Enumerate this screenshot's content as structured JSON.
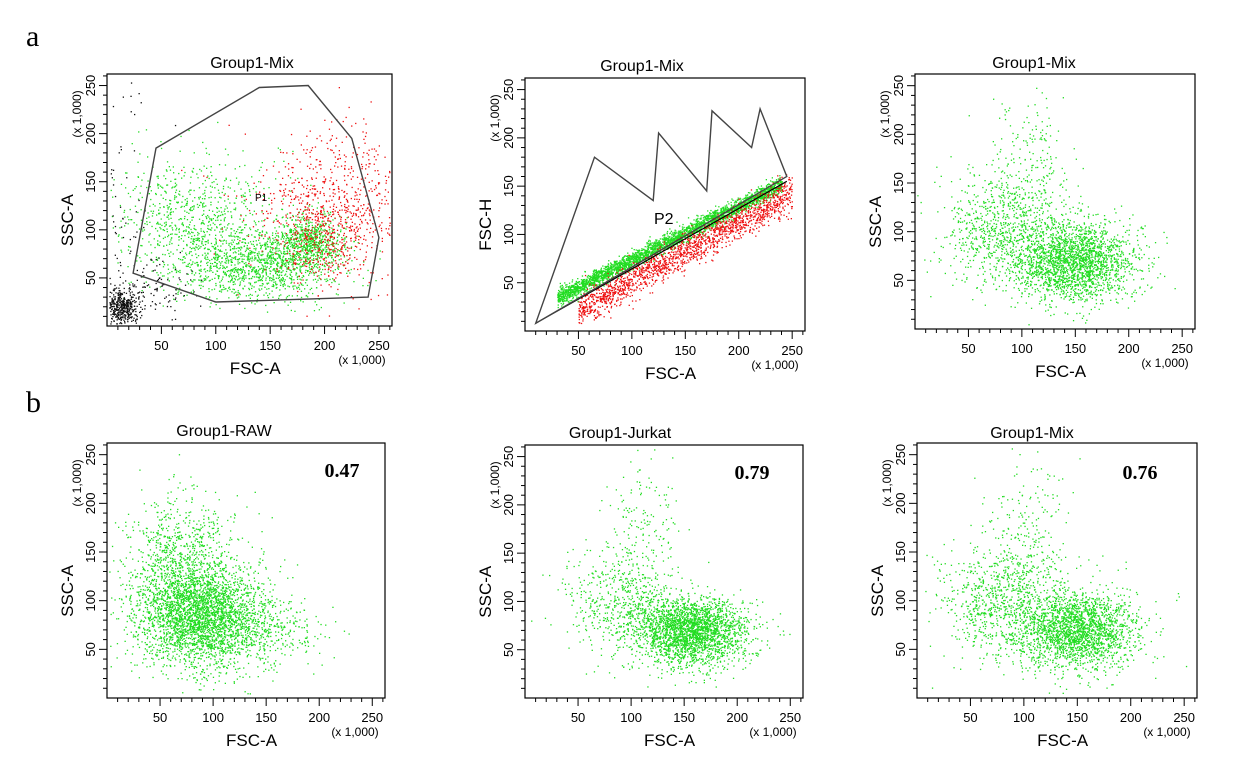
{
  "figure": {
    "panel_a_label": "a",
    "panel_b_label": "b"
  },
  "colors": {
    "green_population": "#22dd22",
    "red_population": "#ee1111",
    "debris": "#111111",
    "gate_line": "#444444"
  },
  "chart_data": [
    {
      "id": "a1",
      "type": "scatter",
      "title": "Group1-Mix",
      "xlabel": "FSC-A",
      "ylabel": "SSC-A",
      "x_scale": "(x 1,000)",
      "y_scale": "(x 1,000)",
      "xlim": [
        0,
        262
      ],
      "ylim": [
        0,
        262
      ],
      "xticks": [
        50,
        100,
        150,
        200,
        250
      ],
      "yticks": [
        50,
        100,
        150,
        200,
        250
      ],
      "gate": {
        "name": "P1",
        "vertices": [
          [
            24,
            55
          ],
          [
            45,
            185
          ],
          [
            140,
            248
          ],
          [
            185,
            250
          ],
          [
            225,
            195
          ],
          [
            250,
            92
          ],
          [
            240,
            30
          ],
          [
            100,
            25
          ]
        ]
      },
      "populations": [
        {
          "color": "green",
          "count": 2600,
          "clusters": [
            [
              140,
              62,
              38,
              18,
              0.45
            ],
            [
              80,
              110,
              38,
              32,
              0.3
            ],
            [
              185,
              88,
              16,
              14,
              0.25
            ]
          ]
        },
        {
          "color": "red",
          "count": 1000,
          "clusters": [
            [
              210,
              125,
              38,
              40,
              0.75
            ],
            [
              195,
              90,
              22,
              22,
              0.25
            ]
          ]
        },
        {
          "color": "black",
          "count": 650,
          "clusters": [
            [
              12,
              20,
              9,
              9,
              0.7
            ],
            [
              40,
              40,
              25,
              18,
              0.15
            ],
            [
              10,
              150,
              15,
              90,
              0.15
            ]
          ]
        }
      ],
      "stat": ""
    },
    {
      "id": "a2",
      "type": "scatter",
      "title": "Group1-Mix",
      "xlabel": "FSC-A",
      "ylabel": "FSC-H",
      "x_scale": "(x 1,000)",
      "y_scale": "(x 1,000)",
      "xlim": [
        0,
        262
      ],
      "ylim": [
        0,
        262
      ],
      "xticks": [
        50,
        100,
        150,
        200,
        250
      ],
      "yticks": [
        50,
        100,
        150,
        200,
        250
      ],
      "gate": {
        "name": "P2",
        "vertices": [
          [
            10,
            8
          ],
          [
            65,
            180
          ],
          [
            120,
            135
          ],
          [
            125,
            205
          ],
          [
            170,
            145
          ],
          [
            175,
            228
          ],
          [
            212,
            190
          ],
          [
            220,
            230
          ],
          [
            245,
            160
          ]
        ]
      },
      "diagonal": [
        [
          10,
          8
        ],
        [
          245,
          155
        ]
      ],
      "populations": [
        {
          "color": "green",
          "count": 3000,
          "band": {
            "x": [
              30,
              240
            ],
            "slope": 0.56,
            "offset": 18,
            "spread": 4.5
          }
        },
        {
          "color": "red",
          "count": 1700,
          "band": {
            "x": [
              50,
              250
            ],
            "slope": 0.62,
            "offset": -10,
            "spread": 9
          }
        }
      ],
      "stat": ""
    },
    {
      "id": "a3",
      "type": "scatter",
      "title": "Group1-Mix",
      "xlabel": "FSC-A",
      "ylabel": "SSC-A",
      "x_scale": "(x 1,000)",
      "y_scale": "(x 1,000)",
      "xlim": [
        0,
        262
      ],
      "ylim": [
        0,
        262
      ],
      "xticks": [
        50,
        100,
        150,
        200,
        250
      ],
      "yticks": [
        50,
        100,
        150,
        200,
        250
      ],
      "populations": [
        {
          "color": "green",
          "count": 3200,
          "clusters": [
            [
              150,
              70,
              28,
              20,
              0.68
            ],
            [
              80,
              100,
              28,
              28,
              0.24
            ],
            [
              105,
              160,
              20,
              45,
              0.08
            ]
          ]
        }
      ],
      "stat": ""
    },
    {
      "id": "b1",
      "type": "scatter",
      "title": "Group1-RAW",
      "xlabel": "FSC-A",
      "ylabel": "SSC-A",
      "x_scale": "(x 1,000)",
      "y_scale": "(x 1,000)",
      "xlim": [
        0,
        262
      ],
      "ylim": [
        0,
        262
      ],
      "xticks": [
        50,
        100,
        150,
        200,
        250
      ],
      "yticks": [
        50,
        100,
        150,
        200,
        250
      ],
      "populations": [
        {
          "color": "green",
          "count": 4200,
          "clusters": [
            [
              90,
              85,
              32,
              28,
              0.75
            ],
            [
              70,
              140,
              25,
              35,
              0.2
            ],
            [
              150,
              70,
              30,
              15,
              0.05
            ]
          ]
        }
      ],
      "stat": "0.47"
    },
    {
      "id": "b2",
      "type": "scatter",
      "title": "Group1-Jurkat",
      "xlabel": "FSC-A",
      "ylabel": "SSC-A",
      "x_scale": "(x 1,000)",
      "y_scale": "(x 1,000)",
      "xlim": [
        0,
        262
      ],
      "ylim": [
        0,
        262
      ],
      "xticks": [
        50,
        100,
        150,
        200,
        250
      ],
      "yticks": [
        50,
        100,
        150,
        200,
        250
      ],
      "populations": [
        {
          "color": "green",
          "count": 3200,
          "clusters": [
            [
              155,
              70,
              26,
              18,
              0.8
            ],
            [
              85,
              100,
              25,
              25,
              0.14
            ],
            [
              110,
              170,
              20,
              40,
              0.06
            ]
          ]
        }
      ],
      "stat": "0.79"
    },
    {
      "id": "b3",
      "type": "scatter",
      "title": "Group1-Mix",
      "xlabel": "FSC-A",
      "ylabel": "SSC-A",
      "x_scale": "(x 1,000)",
      "y_scale": "(x 1,000)",
      "xlim": [
        0,
        262
      ],
      "ylim": [
        0,
        262
      ],
      "xticks": [
        50,
        100,
        150,
        200,
        250
      ],
      "yticks": [
        50,
        100,
        150,
        200,
        250
      ],
      "populations": [
        {
          "color": "green",
          "count": 3200,
          "clusters": [
            [
              150,
              70,
              28,
              20,
              0.68
            ],
            [
              80,
              100,
              28,
              28,
              0.24
            ],
            [
              105,
              160,
              20,
              45,
              0.08
            ]
          ]
        }
      ],
      "stat": "0.76"
    }
  ]
}
